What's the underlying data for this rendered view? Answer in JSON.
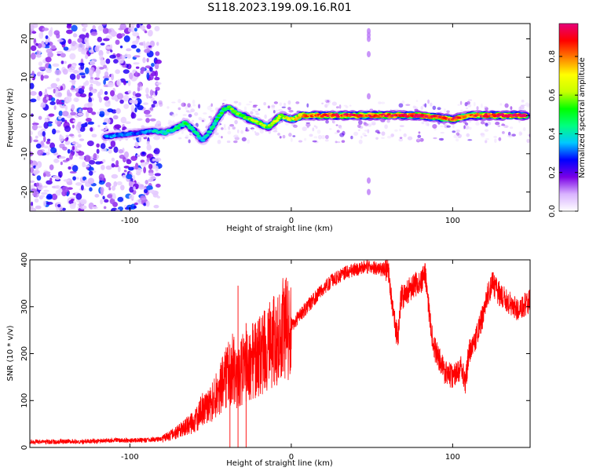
{
  "title": "S118.2023.199.09.16.R01",
  "chart_data": [
    {
      "type": "heatmap",
      "xlabel": "Height of straight line (km)",
      "ylabel": "Frequency (Hz)",
      "xlim": [
        -162,
        148
      ],
      "ylim": [
        -25,
        24
      ],
      "x_ticks": [
        "-100",
        "0",
        "100"
      ],
      "x_tick_values": [
        -100,
        0,
        100
      ],
      "y_ticks": [
        "-20",
        "-10",
        "0",
        "10",
        "20"
      ],
      "y_tick_values": [
        -20,
        -10,
        0,
        10,
        20
      ],
      "colorbar": {
        "label": "Normalized spectral amplitude",
        "range": [
          0,
          0.97
        ],
        "ticks": [
          "0.0",
          "0.2",
          "0.4",
          "0.6",
          "0.8"
        ],
        "tick_values": [
          0.0,
          0.2,
          0.4,
          0.6,
          0.8
        ],
        "colormap": [
          "#ffffff",
          "#d9b3ff",
          "#7a00e6",
          "#0000ff",
          "#00c8ff",
          "#00ff80",
          "#00ff00",
          "#c8ff00",
          "#ffff00",
          "#ff8000",
          "#ff0000",
          "#e6007a"
        ]
      },
      "noise_region": {
        "x_range": [
          -162,
          -82
        ],
        "f_range": [
          -25,
          24
        ]
      },
      "ridge": [
        {
          "x": -115,
          "f": -5.5,
          "a": 0.35
        },
        {
          "x": -105,
          "f": -5.0,
          "a": 0.32
        },
        {
          "x": -95,
          "f": -4.5,
          "a": 0.3
        },
        {
          "x": -85,
          "f": -4.0,
          "a": 0.38
        },
        {
          "x": -78,
          "f": -4.5,
          "a": 0.42
        },
        {
          "x": -72,
          "f": -3.5,
          "a": 0.45
        },
        {
          "x": -66,
          "f": -2.0,
          "a": 0.48
        },
        {
          "x": -60,
          "f": -4.0,
          "a": 0.45
        },
        {
          "x": -55,
          "f": -6.5,
          "a": 0.4
        },
        {
          "x": -50,
          "f": -4.0,
          "a": 0.42
        },
        {
          "x": -46,
          "f": -1.0,
          "a": 0.48
        },
        {
          "x": -42,
          "f": 1.5,
          "a": 0.52
        },
        {
          "x": -38,
          "f": 2.0,
          "a": 0.55
        },
        {
          "x": -34,
          "f": 0.5,
          "a": 0.55
        },
        {
          "x": -30,
          "f": 0.0,
          "a": 0.58
        },
        {
          "x": -26,
          "f": -1.0,
          "a": 0.58
        },
        {
          "x": -22,
          "f": -1.5,
          "a": 0.6
        },
        {
          "x": -18,
          "f": -2.5,
          "a": 0.6
        },
        {
          "x": -14,
          "f": -3.0,
          "a": 0.58
        },
        {
          "x": -10,
          "f": -1.5,
          "a": 0.62
        },
        {
          "x": -6,
          "f": 0.0,
          "a": 0.65
        },
        {
          "x": -2,
          "f": -1.0,
          "a": 0.68
        },
        {
          "x": 2,
          "f": -1.0,
          "a": 0.72
        },
        {
          "x": 6,
          "f": 0.0,
          "a": 0.78
        },
        {
          "x": 12,
          "f": 0.0,
          "a": 0.85
        },
        {
          "x": 20,
          "f": 0.0,
          "a": 0.88
        },
        {
          "x": 30,
          "f": 0.0,
          "a": 0.9
        },
        {
          "x": 40,
          "f": 0.0,
          "a": 0.9
        },
        {
          "x": 50,
          "f": 0.0,
          "a": 0.92
        },
        {
          "x": 55,
          "f": 0.0,
          "a": 0.88
        },
        {
          "x": 60,
          "f": 0.0,
          "a": 0.93
        },
        {
          "x": 70,
          "f": 0.0,
          "a": 0.95
        },
        {
          "x": 80,
          "f": 0.0,
          "a": 0.95
        },
        {
          "x": 90,
          "f": -0.5,
          "a": 0.92
        },
        {
          "x": 100,
          "f": -1.0,
          "a": 0.9
        },
        {
          "x": 110,
          "f": 0.0,
          "a": 0.85
        },
        {
          "x": 120,
          "f": 0.0,
          "a": 0.92
        },
        {
          "x": 130,
          "f": 0.0,
          "a": 0.95
        },
        {
          "x": 140,
          "f": 0.0,
          "a": 0.96
        },
        {
          "x": 146,
          "f": 0.0,
          "a": 0.96
        }
      ],
      "vertical_artifact": {
        "x": 48,
        "f_values": [
          -20,
          -17,
          5,
          16,
          20,
          21,
          22
        ]
      }
    },
    {
      "type": "line",
      "xlabel": "Height of straight line (km)",
      "ylabel": "SNR (10 * v/v)",
      "xlim": [
        -162,
        148
      ],
      "ylim": [
        0,
        400
      ],
      "x_ticks": [
        "-100",
        "0",
        "100"
      ],
      "x_tick_values": [
        -100,
        0,
        100
      ],
      "y_ticks": [
        "0",
        "100",
        "200",
        "300",
        "400"
      ],
      "y_tick_values": [
        0,
        100,
        200,
        300,
        400
      ],
      "line_color": "#ff0000",
      "series": [
        {
          "x": [
            -162,
            -150,
            -140,
            -130,
            -120,
            -110,
            -100,
            -90,
            -80,
            -75,
            -70,
            -65,
            -60,
            -55,
            -50,
            -45,
            -40,
            -36,
            -33,
            -30,
            -25,
            -20,
            -15,
            -10,
            -5,
            0,
            5,
            10,
            15,
            20,
            25,
            30,
            35,
            40,
            45,
            50,
            55,
            58,
            60,
            62,
            64,
            66,
            68,
            70,
            75,
            80,
            83,
            85,
            88,
            90,
            95,
            100,
            105,
            108,
            110,
            115,
            118,
            120,
            125,
            130,
            135,
            140,
            148
          ],
          "y": [
            12,
            12,
            13,
            12,
            14,
            15,
            15,
            16,
            18,
            25,
            35,
            45,
            55,
            80,
            90,
            120,
            150,
            170,
            140,
            170,
            180,
            195,
            210,
            230,
            250,
            260,
            280,
            300,
            320,
            340,
            355,
            365,
            375,
            380,
            385,
            385,
            380,
            380,
            385,
            320,
            270,
            230,
            320,
            320,
            345,
            350,
            370,
            300,
            220,
            200,
            160,
            150,
            170,
            140,
            200,
            240,
            270,
            310,
            350,
            320,
            310,
            295,
            310
          ]
        }
      ],
      "spikes": [
        {
          "x": -33,
          "y": 345
        },
        {
          "x": -28,
          "y": 265
        },
        {
          "x": -38,
          "y": 210
        }
      ]
    }
  ]
}
